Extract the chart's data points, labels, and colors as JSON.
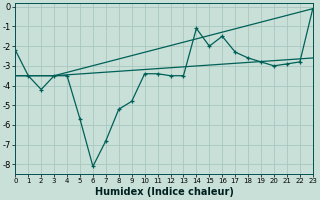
{
  "xlabel": "Humidex (Indice chaleur)",
  "bg_color": "#c8e0d8",
  "grid_color": "#a8c8c0",
  "line_color": "#006058",
  "xlim": [
    0,
    23
  ],
  "ylim": [
    -8.5,
    0.2
  ],
  "xticks": [
    0,
    1,
    2,
    3,
    4,
    5,
    6,
    7,
    8,
    9,
    10,
    11,
    12,
    13,
    14,
    15,
    16,
    17,
    18,
    19,
    20,
    21,
    22,
    23
  ],
  "yticks": [
    0,
    -1,
    -2,
    -3,
    -4,
    -5,
    -6,
    -7,
    -8
  ],
  "line1_x": [
    0,
    1,
    2,
    3,
    4,
    5,
    6,
    7,
    8,
    9,
    10,
    11,
    12,
    13,
    14,
    15,
    16,
    17,
    18,
    19,
    20,
    21,
    22,
    23
  ],
  "line1_y": [
    -2.2,
    -3.5,
    -4.2,
    -3.5,
    -3.5,
    -5.7,
    -8.1,
    -6.8,
    -5.2,
    -4.8,
    -3.4,
    -3.4,
    -3.5,
    -3.5,
    -1.1,
    -2.0,
    -1.5,
    -2.3,
    -2.6,
    -2.8,
    -3.0,
    -2.9,
    -2.8,
    -0.1
  ],
  "line2_x": [
    0,
    3,
    23
  ],
  "line2_y": [
    -3.5,
    -3.5,
    -0.1
  ],
  "line3_x": [
    0,
    3,
    23
  ],
  "line3_y": [
    -3.5,
    -3.5,
    -2.6
  ]
}
